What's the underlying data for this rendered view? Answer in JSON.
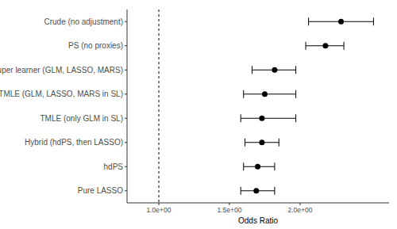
{
  "chart_data": {
    "type": "forest",
    "categories": [
      "Crude (no adjustment)",
      "PS (no proxies)",
      "Super learner (GLM, LASSO, MARS)",
      "TMLE (GLM, LASSO, MARS in SL)",
      "TMLE (only GLM in SL)",
      "Hybrid (hdPS, then LASSO)",
      "hdPS",
      "Pure LASSO"
    ],
    "values": [
      2.29,
      2.18,
      1.82,
      1.75,
      1.73,
      1.73,
      1.7,
      1.69
    ],
    "ci_lower": [
      2.06,
      2.04,
      1.66,
      1.6,
      1.58,
      1.61,
      1.6,
      1.58
    ],
    "ci_upper": [
      2.52,
      2.31,
      1.97,
      1.97,
      1.97,
      1.85,
      1.82,
      1.82
    ],
    "color": "#000000",
    "xlabel": "Odds Ratio",
    "xlim": [
      0.775,
      2.63
    ],
    "xticks": [
      {
        "value": 1,
        "label": "1.0e+00"
      },
      {
        "value": 1.5,
        "label": "1.5e+00"
      },
      {
        "value": 2,
        "label": "2.0e+00"
      }
    ],
    "reference_line": 1,
    "orientation": "horizontal"
  }
}
